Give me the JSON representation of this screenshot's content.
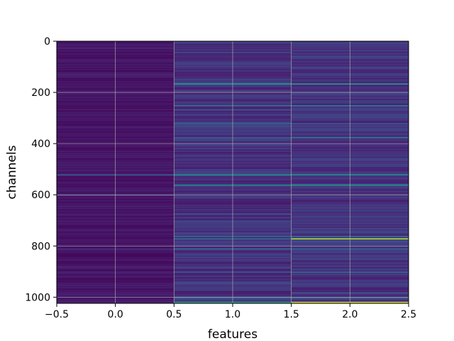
{
  "chart_data": {
    "type": "heatmap",
    "title": "",
    "xlabel": "features",
    "ylabel": "channels",
    "xlim": [
      -0.5,
      2.5
    ],
    "ylim": [
      1024,
      0
    ],
    "x_ticks": [
      -0.5,
      0.0,
      0.5,
      1.0,
      1.5,
      2.0,
      2.5
    ],
    "x_tick_labels": [
      "−0.5",
      "0.0",
      "0.5",
      "1.0",
      "1.5",
      "2.0",
      "2.5"
    ],
    "y_ticks": [
      0,
      200,
      400,
      600,
      800,
      1000
    ],
    "y_tick_labels": [
      "0",
      "200",
      "400",
      "600",
      "800",
      "1000"
    ],
    "grid": true,
    "colormap": "viridis",
    "columns": [
      0,
      1,
      2
    ],
    "rows": 1024,
    "background_value": 0.05,
    "column_base_values": [
      0.02,
      0.07,
      0.08
    ],
    "highlighted_rows": [
      {
        "channel": 165,
        "values": [
          0.05,
          0.55,
          0.55
        ]
      },
      {
        "channel": 250,
        "values": [
          0.04,
          0.4,
          0.45
        ]
      },
      {
        "channel": 320,
        "values": [
          0.05,
          0.35,
          0.3
        ]
      },
      {
        "channel": 375,
        "values": [
          0.04,
          0.3,
          0.4
        ]
      },
      {
        "channel": 520,
        "values": [
          0.3,
          0.5,
          0.5
        ]
      },
      {
        "channel": 560,
        "values": [
          0.05,
          0.5,
          0.55
        ]
      },
      {
        "channel": 600,
        "values": [
          0.2,
          0.15,
          0.15
        ]
      },
      {
        "channel": 760,
        "values": [
          0.05,
          0.4,
          0.45
        ]
      },
      {
        "channel": 770,
        "values": [
          0.04,
          0.35,
          0.9
        ]
      },
      {
        "channel": 810,
        "values": [
          0.15,
          0.35,
          0.3
        ]
      },
      {
        "channel": 900,
        "values": [
          0.1,
          0.3,
          0.4
        ]
      },
      {
        "channel": 1000,
        "values": [
          0.05,
          0.35,
          0.35
        ]
      },
      {
        "channel": 1018,
        "values": [
          0.1,
          0.6,
          0.95
        ]
      }
    ]
  }
}
